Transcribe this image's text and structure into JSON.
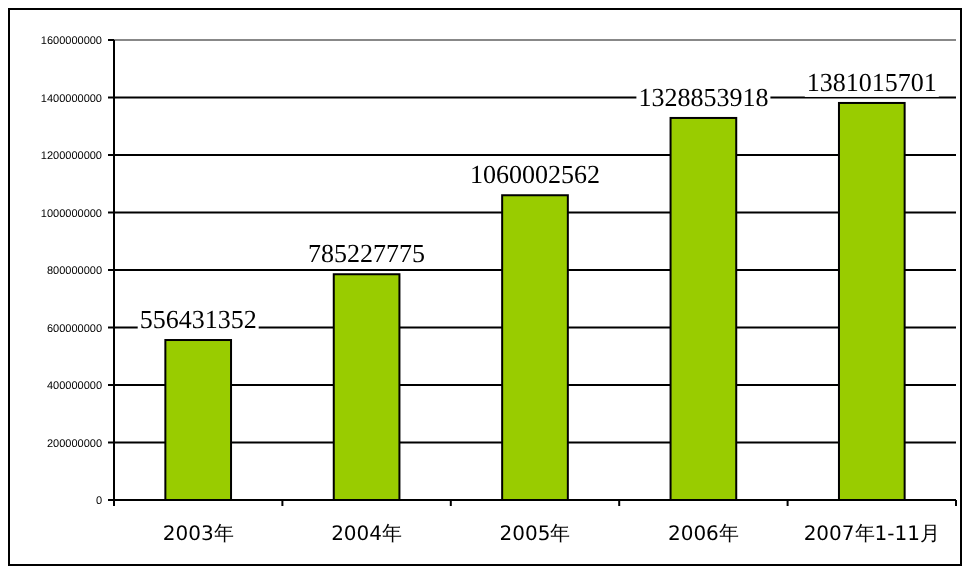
{
  "chart_data": {
    "type": "bar",
    "categories": [
      "2003年",
      "2004年",
      "2005年",
      "2006年",
      "2007年1-11月"
    ],
    "values": [
      556431352,
      785227775,
      1060002562,
      1328853918,
      1381015701
    ],
    "color": "#99cc00",
    "ylim": [
      0,
      1600000000
    ],
    "yticks": [
      0,
      200000000,
      400000000,
      600000000,
      800000000,
      1000000000,
      1200000000,
      1400000000,
      1600000000
    ],
    "grid": "y",
    "data_labels": true
  }
}
